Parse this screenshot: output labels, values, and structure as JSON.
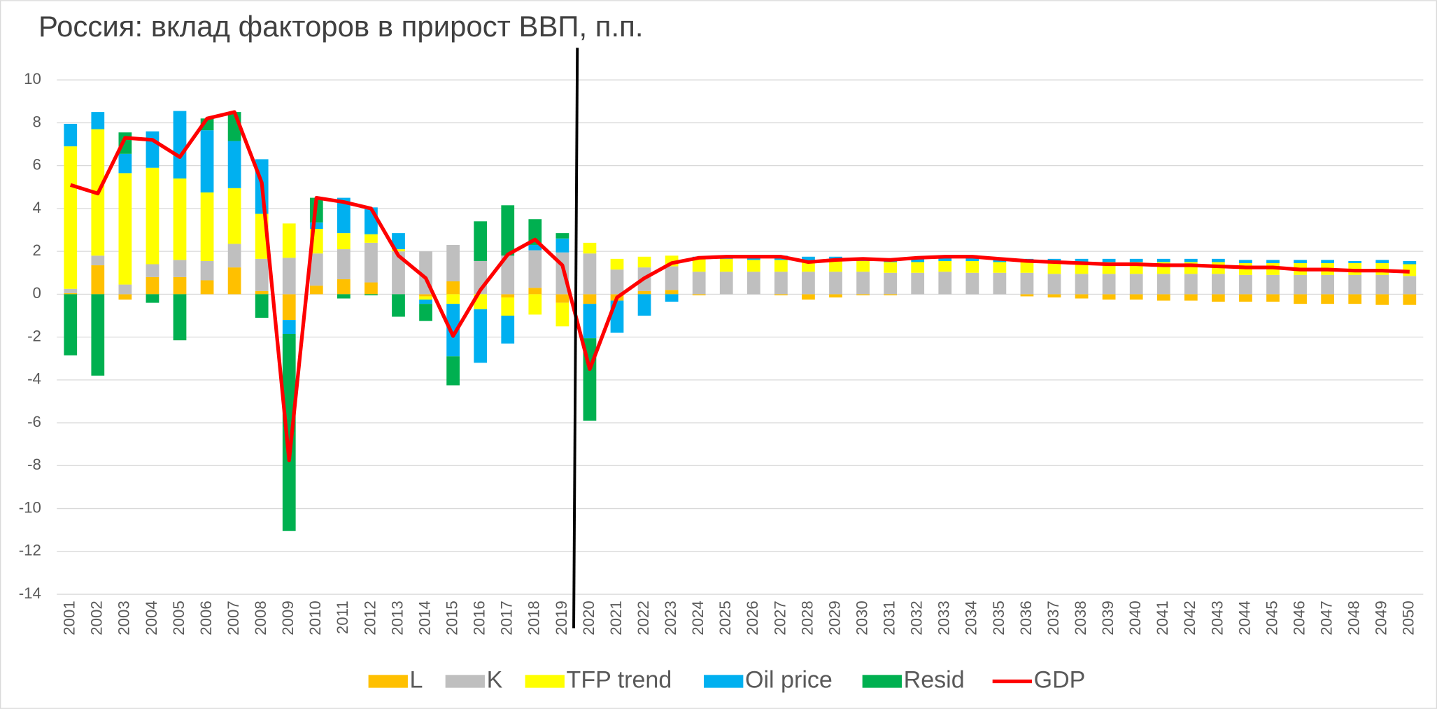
{
  "chart_data": {
    "type": "bar",
    "stacked": true,
    "title": "Россия: вклад факторов в прирост ВВП, п.п.",
    "categories": [
      "2001",
      "2002",
      "2003",
      "2004",
      "2005",
      "2006",
      "2007",
      "2008",
      "2009",
      "2010",
      "2011",
      "2012",
      "2013",
      "2014",
      "2015",
      "2016",
      "2017",
      "2018",
      "2019",
      "2020",
      "2021",
      "2022",
      "2023",
      "2024",
      "2025",
      "2026",
      "2027",
      "2028",
      "2029",
      "2030",
      "2031",
      "2032",
      "2033",
      "2034",
      "2035",
      "2036",
      "2037",
      "2038",
      "2039",
      "2040",
      "2041",
      "2042",
      "2043",
      "2044",
      "2045",
      "2046",
      "2047",
      "2048",
      "2049",
      "2050"
    ],
    "series": [
      {
        "name": "L",
        "color": "#ffc000",
        "values": [
          0.05,
          1.35,
          -0.25,
          0.8,
          0.8,
          0.65,
          1.25,
          0.15,
          -1.2,
          0.4,
          0.7,
          0.55,
          0,
          -0.1,
          0.6,
          0,
          -0.15,
          0.3,
          -0.4,
          -0.45,
          -0.3,
          0.15,
          0.2,
          -0.05,
          0,
          0,
          -0.05,
          -0.25,
          -0.15,
          -0.05,
          -0.05,
          0,
          0,
          0,
          0,
          -0.1,
          -0.15,
          -0.2,
          -0.25,
          -0.25,
          -0.3,
          -0.3,
          -0.35,
          -0.35,
          -0.35,
          -0.45,
          -0.45,
          -0.45,
          -0.5,
          -0.5
        ]
      },
      {
        "name": "K",
        "color": "#bfbfbf",
        "values": [
          0.2,
          0.45,
          0.45,
          0.6,
          0.8,
          0.9,
          1.1,
          1.5,
          1.7,
          1.5,
          1.4,
          1.85,
          2.0,
          2.0,
          1.7,
          1.55,
          1.8,
          1.75,
          1.95,
          1.9,
          1.15,
          1.1,
          1.1,
          1.05,
          1.05,
          1.05,
          1.05,
          1.05,
          1.05,
          1.05,
          1.0,
          1.0,
          1.05,
          1.0,
          1.0,
          1.0,
          0.95,
          0.95,
          0.95,
          0.95,
          0.95,
          0.95,
          0.95,
          0.9,
          0.9,
          0.9,
          0.9,
          0.9,
          0.9,
          0.85
        ]
      },
      {
        "name": "TFP trend",
        "color": "#ffff00",
        "values": [
          6.65,
          5.9,
          5.2,
          4.5,
          3.8,
          3.2,
          2.6,
          2.1,
          1.6,
          1.15,
          0.75,
          0.4,
          0.1,
          -0.15,
          -0.45,
          -0.7,
          -0.85,
          -0.95,
          -1.1,
          0.5,
          0.5,
          0.5,
          0.5,
          0.65,
          0.6,
          0.55,
          0.55,
          0.5,
          0.5,
          0.5,
          0.5,
          0.5,
          0.5,
          0.55,
          0.5,
          0.5,
          0.55,
          0.55,
          0.55,
          0.55,
          0.55,
          0.55,
          0.55,
          0.55,
          0.55,
          0.55,
          0.55,
          0.55,
          0.55,
          0.55
        ]
      },
      {
        "name": "Oil price",
        "color": "#00b0f0",
        "values": [
          1.05,
          0.8,
          0.9,
          1.7,
          3.15,
          2.9,
          2.2,
          2.55,
          -0.65,
          0.3,
          1.65,
          1.25,
          0.75,
          -0.2,
          -2.45,
          -2.5,
          -1.3,
          0.25,
          0.65,
          -1.6,
          -1.5,
          -1.0,
          -0.35,
          0.05,
          0.1,
          0.15,
          0.2,
          0.2,
          0.2,
          0.15,
          0.15,
          0.2,
          0.2,
          0.2,
          0.15,
          0.15,
          0.15,
          0.15,
          0.15,
          0.15,
          0.15,
          0.15,
          0.15,
          0.15,
          0.15,
          0.15,
          0.15,
          0.1,
          0.15,
          0.15
        ]
      },
      {
        "name": "Resid",
        "color": "#00b050",
        "values": [
          -2.85,
          -3.8,
          1.0,
          -0.4,
          -2.15,
          0.55,
          1.35,
          -1.1,
          -9.2,
          1.15,
          -0.2,
          -0.05,
          -1.05,
          -0.8,
          -1.35,
          1.85,
          2.35,
          1.2,
          0.25,
          -3.85,
          0,
          0,
          0,
          0,
          0,
          0,
          0,
          0,
          0,
          0,
          0,
          0,
          0,
          0,
          0,
          0,
          0,
          0,
          0,
          0,
          0,
          0,
          0,
          0,
          0,
          0,
          0,
          0,
          0,
          0
        ]
      },
      {
        "name": "GDP",
        "color": "#ff0000",
        "type": "line",
        "values": [
          5.1,
          4.7,
          7.3,
          7.2,
          6.4,
          8.2,
          8.5,
          5.2,
          -7.75,
          4.5,
          4.3,
          4.0,
          1.8,
          0.75,
          -1.95,
          0.2,
          1.85,
          2.55,
          1.35,
          -3.5,
          -0.15,
          0.75,
          1.45,
          1.7,
          1.75,
          1.75,
          1.75,
          1.5,
          1.6,
          1.65,
          1.6,
          1.7,
          1.75,
          1.75,
          1.65,
          1.55,
          1.5,
          1.45,
          1.4,
          1.4,
          1.35,
          1.35,
          1.3,
          1.25,
          1.25,
          1.15,
          1.15,
          1.1,
          1.1,
          1.05
        ]
      }
    ],
    "ylim": [
      -14,
      10
    ],
    "yticks": [
      -14,
      -12,
      -10,
      -8,
      -6,
      -4,
      -2,
      0,
      2,
      4,
      6,
      8,
      10
    ],
    "grid": true,
    "legend": "bottom"
  }
}
